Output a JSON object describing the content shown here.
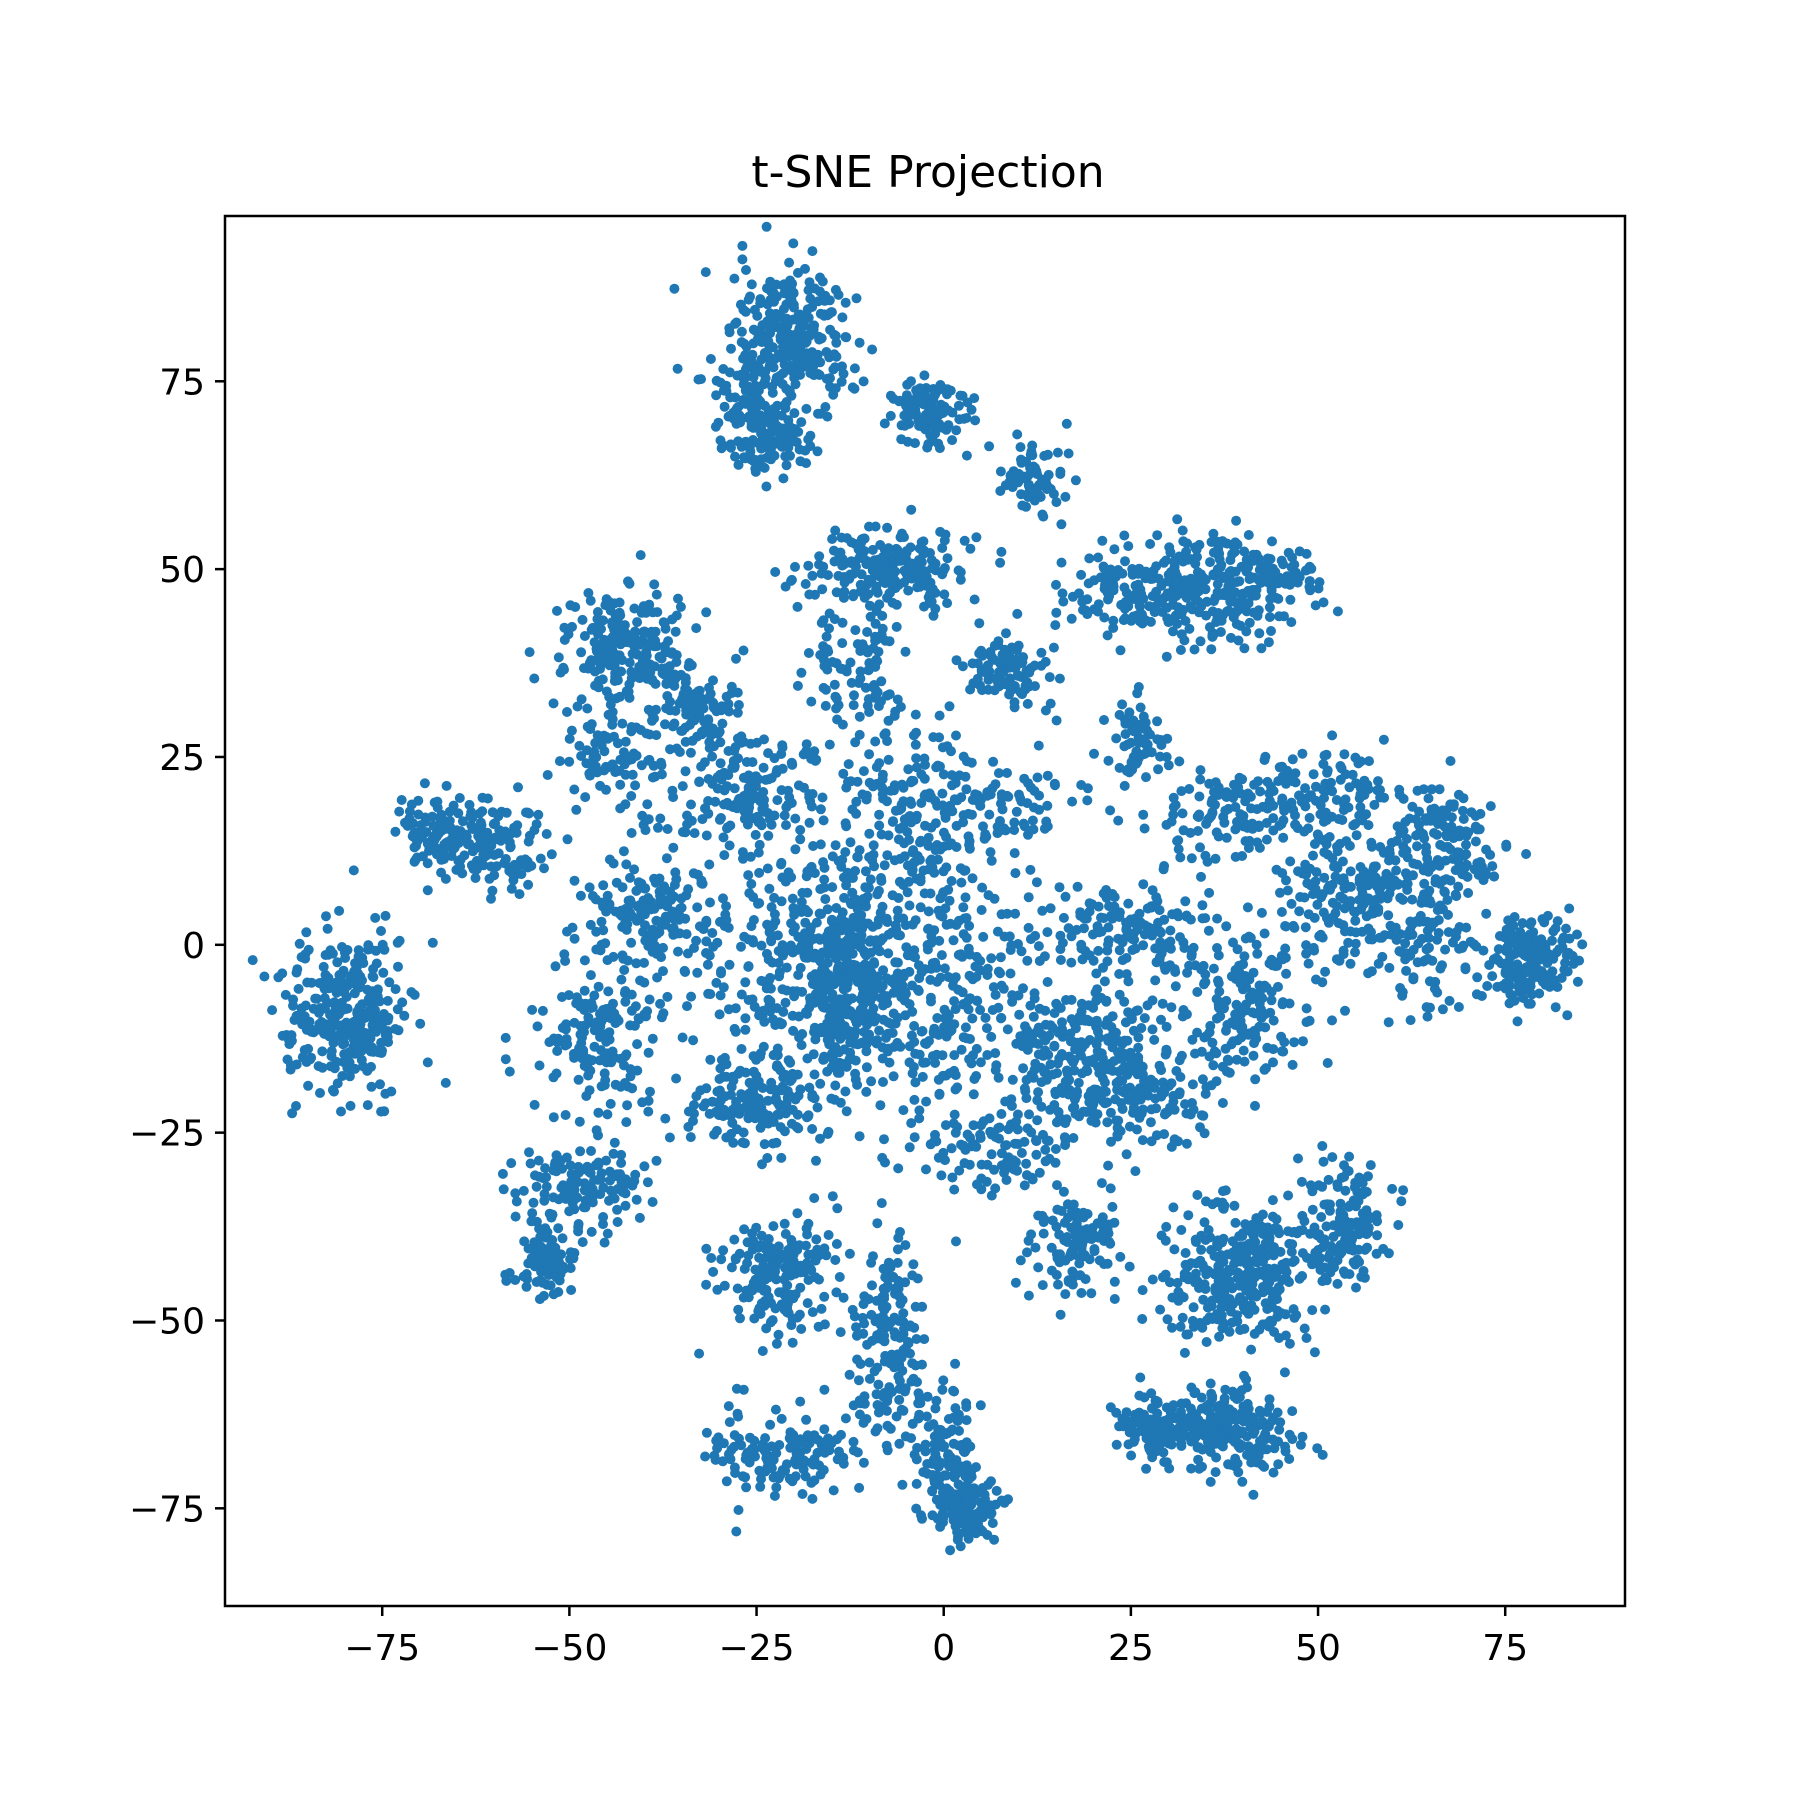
{
  "chart_data": {
    "type": "scatter",
    "title": "t-SNE Projection",
    "xlabel": "",
    "ylabel": "",
    "xlim": [
      -96,
      91
    ],
    "ylim": [
      -88,
      97
    ],
    "grid": false,
    "color": "#1f77b4",
    "xticks": [
      -75,
      -50,
      -25,
      0,
      25,
      50,
      75
    ],
    "yticks": [
      -75,
      -50,
      -25,
      0,
      25,
      50,
      75
    ],
    "xtick_labels": [
      "−75",
      "−50",
      "−25",
      "0",
      "25",
      "50",
      "75"
    ],
    "ytick_labels": [
      "−75",
      "−50",
      "−25",
      "0",
      "25",
      "50",
      "75"
    ],
    "clusters": [
      {
        "center": [
          -20,
          80
        ],
        "spread": [
          4,
          5
        ],
        "count": 260
      },
      {
        "center": [
          -26,
          72
        ],
        "spread": [
          3,
          4
        ],
        "count": 120
      },
      {
        "center": [
          -22,
          66
        ],
        "spread": [
          2.5,
          2
        ],
        "count": 60
      },
      {
        "center": [
          -2,
          71
        ],
        "spread": [
          3,
          2.5
        ],
        "count": 110
      },
      {
        "center": [
          12,
          62
        ],
        "spread": [
          2,
          2.5
        ],
        "count": 70
      },
      {
        "center": [
          -8,
          50
        ],
        "spread": [
          5,
          2.5
        ],
        "count": 220
      },
      {
        "center": [
          -11,
          37
        ],
        "spread": [
          3,
          4
        ],
        "count": 90
      },
      {
        "center": [
          9,
          37
        ],
        "spread": [
          3,
          2.5
        ],
        "count": 100
      },
      {
        "center": [
          25,
          47
        ],
        "spread": [
          5,
          3
        ],
        "count": 130
      },
      {
        "center": [
          36,
          48
        ],
        "spread": [
          5,
          4
        ],
        "count": 220
      },
      {
        "center": [
          46,
          49
        ],
        "spread": [
          3,
          2
        ],
        "count": 50
      },
      {
        "center": [
          -43,
          40
        ],
        "spread": [
          4,
          4
        ],
        "count": 200
      },
      {
        "center": [
          -33,
          31
        ],
        "spread": [
          4,
          4
        ],
        "count": 130
      },
      {
        "center": [
          -44,
          25
        ],
        "spread": [
          3,
          4
        ],
        "count": 90
      },
      {
        "center": [
          -26,
          20
        ],
        "spread": [
          4,
          4
        ],
        "count": 150
      },
      {
        "center": [
          -4,
          18
        ],
        "spread": [
          6,
          6
        ],
        "count": 180
      },
      {
        "center": [
          10,
          18
        ],
        "spread": [
          4,
          3
        ],
        "count": 60
      },
      {
        "center": [
          26,
          27
        ],
        "spread": [
          2.5,
          2.5
        ],
        "count": 60
      },
      {
        "center": [
          -67,
          15
        ],
        "spread": [
          3,
          2.5
        ],
        "count": 110
      },
      {
        "center": [
          -59,
          13
        ],
        "spread": [
          3,
          3
        ],
        "count": 100
      },
      {
        "center": [
          -80,
          -9
        ],
        "spread": [
          4,
          5
        ],
        "count": 330
      },
      {
        "center": [
          -40,
          4
        ],
        "spread": [
          4,
          4
        ],
        "count": 150
      },
      {
        "center": [
          -20,
          -3
        ],
        "spread": [
          8,
          8
        ],
        "count": 300
      },
      {
        "center": [
          -13,
          -5
        ],
        "spread": [
          3,
          7
        ],
        "count": 260
      },
      {
        "center": [
          0,
          -5
        ],
        "spread": [
          8,
          10
        ],
        "count": 360
      },
      {
        "center": [
          -46,
          -13
        ],
        "spread": [
          4,
          6
        ],
        "count": 160
      },
      {
        "center": [
          -25,
          -21
        ],
        "spread": [
          5,
          3
        ],
        "count": 160
      },
      {
        "center": [
          18,
          -15
        ],
        "spread": [
          5,
          5
        ],
        "count": 220
      },
      {
        "center": [
          27,
          -20
        ],
        "spread": [
          5,
          4
        ],
        "count": 120
      },
      {
        "center": [
          25,
          2
        ],
        "spread": [
          5,
          3
        ],
        "count": 140
      },
      {
        "center": [
          37,
          17
        ],
        "spread": [
          5,
          3
        ],
        "count": 110
      },
      {
        "center": [
          50,
          21
        ],
        "spread": [
          5,
          3
        ],
        "count": 90
      },
      {
        "center": [
          54,
          7
        ],
        "spread": [
          5,
          5
        ],
        "count": 200
      },
      {
        "center": [
          67,
          13
        ],
        "spread": [
          4,
          5
        ],
        "count": 160
      },
      {
        "center": [
          64,
          0
        ],
        "spread": [
          3,
          5
        ],
        "count": 80
      },
      {
        "center": [
          78,
          -2
        ],
        "spread": [
          3,
          3
        ],
        "count": 170
      },
      {
        "center": [
          40,
          -8
        ],
        "spread": [
          5,
          5
        ],
        "count": 180
      },
      {
        "center": [
          -48,
          -32
        ],
        "spread": [
          5,
          2.5
        ],
        "count": 120
      },
      {
        "center": [
          -53,
          -42
        ],
        "spread": [
          2.5,
          3
        ],
        "count": 90
      },
      {
        "center": [
          -22,
          -44
        ],
        "spread": [
          4,
          4
        ],
        "count": 190
      },
      {
        "center": [
          -8,
          -50
        ],
        "spread": [
          2.5,
          5
        ],
        "count": 110
      },
      {
        "center": [
          -8,
          -60
        ],
        "spread": [
          3,
          3
        ],
        "count": 60
      },
      {
        "center": [
          -22,
          -68
        ],
        "spread": [
          5,
          3
        ],
        "count": 140
      },
      {
        "center": [
          0,
          -68
        ],
        "spread": [
          2,
          4
        ],
        "count": 110
      },
      {
        "center": [
          3,
          -75
        ],
        "spread": [
          2,
          2
        ],
        "count": 110
      },
      {
        "center": [
          8,
          -28
        ],
        "spread": [
          6,
          3
        ],
        "count": 100
      },
      {
        "center": [
          18,
          -40
        ],
        "spread": [
          3,
          3
        ],
        "count": 120
      },
      {
        "center": [
          40,
          -42
        ],
        "spread": [
          4,
          4
        ],
        "count": 220
      },
      {
        "center": [
          37,
          -48
        ],
        "spread": [
          5,
          3
        ],
        "count": 100
      },
      {
        "center": [
          53,
          -37
        ],
        "spread": [
          3,
          4
        ],
        "count": 150
      },
      {
        "center": [
          29,
          -64
        ],
        "spread": [
          3,
          2
        ],
        "count": 130
      },
      {
        "center": [
          39,
          -65
        ],
        "spread": [
          4,
          3
        ],
        "count": 190
      }
    ]
  }
}
